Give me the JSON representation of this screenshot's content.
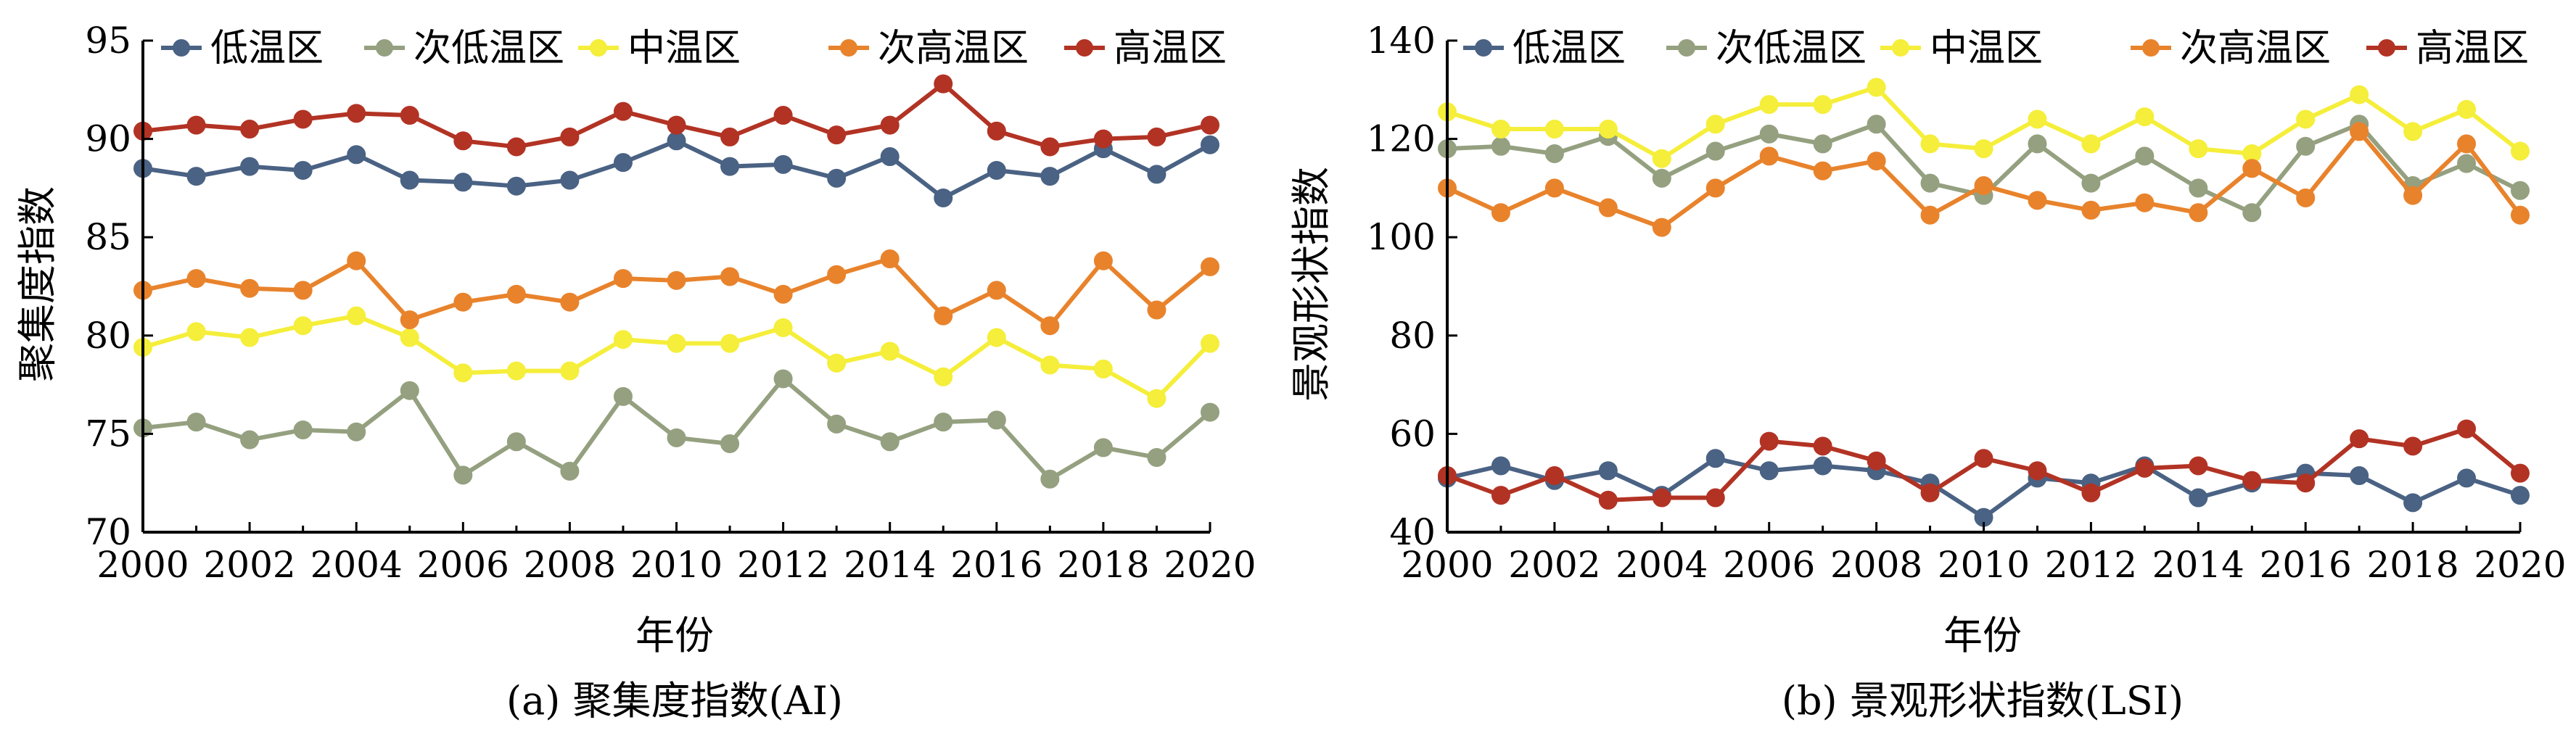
{
  "colors": {
    "低温区": "#4a6283",
    "次低温区": "#94a07f",
    "中温区": "#f5ee3a",
    "次高温区": "#e8832c",
    "高温区": "#b23324"
  },
  "chart_data": [
    {
      "type": "line",
      "caption": "(a) 聚集度指数(AI)",
      "xlabel": "年份",
      "ylabel": "聚集度指数",
      "xlim": [
        2000,
        2020
      ],
      "ylim": [
        70,
        95
      ],
      "xticks": [
        2000,
        2002,
        2004,
        2006,
        2008,
        2010,
        2012,
        2014,
        2016,
        2018,
        2020
      ],
      "yticks": [
        70,
        75,
        80,
        85,
        90,
        95
      ],
      "legend_position": "top",
      "x": [
        2000,
        2001,
        2002,
        2003,
        2004,
        2005,
        2006,
        2007,
        2008,
        2009,
        2010,
        2011,
        2012,
        2013,
        2014,
        2015,
        2016,
        2017,
        2018,
        2019,
        2020
      ],
      "series": [
        {
          "name": "低温区",
          "values": [
            88.5,
            88.1,
            88.6,
            88.4,
            89.2,
            87.9,
            87.8,
            87.6,
            87.9,
            88.8,
            89.9,
            88.6,
            88.7,
            88.0,
            89.1,
            87.0,
            88.4,
            88.1,
            89.5,
            88.2,
            89.7
          ]
        },
        {
          "name": "次低温区",
          "values": [
            75.3,
            75.6,
            74.7,
            75.2,
            75.1,
            77.2,
            72.9,
            74.6,
            73.1,
            76.9,
            74.8,
            74.5,
            77.8,
            75.5,
            74.6,
            75.6,
            75.7,
            72.7,
            74.3,
            73.8,
            76.1
          ]
        },
        {
          "name": "中温区",
          "values": [
            79.4,
            80.2,
            79.9,
            80.5,
            81.0,
            79.9,
            78.1,
            78.2,
            78.2,
            79.8,
            79.6,
            79.6,
            80.4,
            78.6,
            79.2,
            77.9,
            79.9,
            78.5,
            78.3,
            76.8,
            79.6
          ]
        },
        {
          "name": "次高温区",
          "values": [
            82.3,
            82.9,
            82.4,
            82.3,
            83.8,
            80.8,
            81.7,
            82.1,
            81.7,
            82.9,
            82.8,
            83.0,
            82.1,
            83.1,
            83.9,
            81.0,
            82.3,
            80.5,
            83.8,
            81.3,
            83.5
          ]
        },
        {
          "name": "高温区",
          "values": [
            90.4,
            90.7,
            90.5,
            91.0,
            91.3,
            91.2,
            89.9,
            89.6,
            90.1,
            91.4,
            90.7,
            90.1,
            91.2,
            90.2,
            90.7,
            92.8,
            90.4,
            89.6,
            90.0,
            90.1,
            90.7
          ]
        }
      ]
    },
    {
      "type": "line",
      "caption": "(b) 景观形状指数(LSI)",
      "xlabel": "年份",
      "ylabel": "景观形状指数",
      "xlim": [
        2000,
        2020
      ],
      "ylim": [
        40,
        140
      ],
      "xticks": [
        2000,
        2002,
        2004,
        2006,
        2008,
        2010,
        2012,
        2014,
        2016,
        2018,
        2020
      ],
      "yticks": [
        40,
        60,
        80,
        100,
        120,
        140
      ],
      "legend_position": "top",
      "x": [
        2000,
        2001,
        2002,
        2003,
        2004,
        2005,
        2006,
        2007,
        2008,
        2009,
        2010,
        2011,
        2012,
        2013,
        2014,
        2015,
        2016,
        2017,
        2018,
        2019,
        2020
      ],
      "series": [
        {
          "name": "低温区",
          "values": [
            51,
            53.5,
            50.5,
            52.5,
            47.5,
            55,
            52.5,
            53.5,
            52.5,
            50,
            43,
            51,
            50,
            53.5,
            47,
            50,
            52,
            51.5,
            46,
            51,
            47.5
          ]
        },
        {
          "name": "次低温区",
          "values": [
            118,
            118.5,
            117,
            120.5,
            112,
            117.5,
            121,
            119,
            123,
            111,
            108.5,
            119,
            111,
            116.5,
            110,
            105,
            118.5,
            123,
            110.5,
            115,
            109.5
          ]
        },
        {
          "name": "中温区",
          "values": [
            125.5,
            122,
            122,
            122,
            116,
            123,
            127,
            127,
            130.5,
            119,
            118,
            124,
            119,
            124.5,
            118,
            117,
            124,
            129,
            121.5,
            126,
            117.5
          ]
        },
        {
          "name": "次高温区",
          "values": [
            110,
            105,
            110,
            106,
            102,
            110,
            116.5,
            113.5,
            115.5,
            104.5,
            110.5,
            107.5,
            105.5,
            107,
            105,
            114,
            108,
            121.5,
            108.5,
            119,
            104.5
          ]
        },
        {
          "name": "高温区",
          "values": [
            51.5,
            47.5,
            51.5,
            46.5,
            47,
            47,
            58.5,
            57.5,
            54.5,
            48,
            55,
            52.5,
            48,
            53,
            53.5,
            50.5,
            50,
            59,
            57.5,
            61,
            52
          ]
        }
      ]
    }
  ]
}
